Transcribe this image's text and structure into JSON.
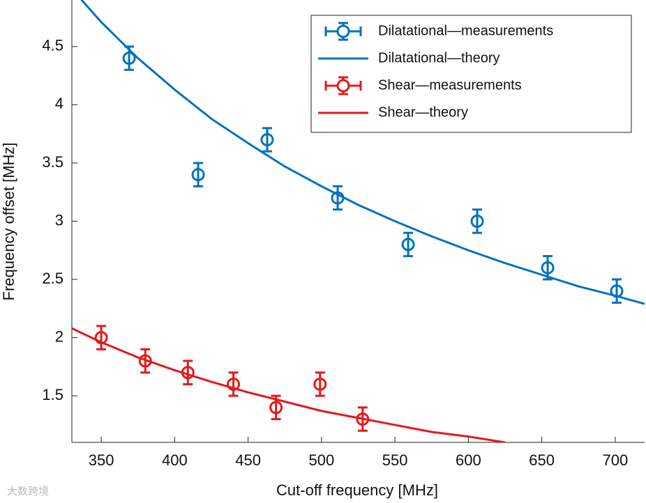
{
  "chart_data": {
    "type": "line",
    "x_label": "Cut-off frequency [MHz]",
    "y_label": "Frequency offset [MHz]",
    "xlim": [
      330,
      720
    ],
    "ylim": [
      1.1,
      4.9
    ],
    "xticks": [
      350,
      400,
      450,
      500,
      550,
      600,
      650,
      700
    ],
    "yticks": [
      1.5,
      2,
      2.5,
      3,
      3.5,
      4,
      4.5
    ],
    "legend": "upper right",
    "watermark": "大数跨境",
    "series": [
      {
        "name": "Dilatational—measurements",
        "color": "#0072bd",
        "mode": "markers",
        "x": [
          369,
          416,
          463,
          511,
          559,
          606,
          654,
          701
        ],
        "values": [
          4.4,
          3.4,
          3.7,
          3.2,
          2.8,
          3.0,
          2.6,
          2.4
        ],
        "errors": [
          0.1,
          0.1,
          0.1,
          0.1,
          0.1,
          0.1,
          0.1,
          0.1
        ]
      },
      {
        "name": "Dilatational—theory",
        "color": "#0072bd",
        "mode": "line",
        "x": [
          336,
          350,
          375,
          400,
          425,
          450,
          475,
          500,
          525,
          550,
          575,
          600,
          625,
          650,
          675,
          700,
          720
        ],
        "values": [
          4.91,
          4.71,
          4.4,
          4.13,
          3.88,
          3.67,
          3.47,
          3.3,
          3.14,
          3.0,
          2.87,
          2.75,
          2.64,
          2.54,
          2.44,
          2.36,
          2.29
        ]
      },
      {
        "name": "Shear—measurements",
        "color": "#e4191c",
        "mode": "markers",
        "x": [
          350,
          380,
          409,
          440,
          469,
          499,
          528
        ],
        "values": [
          2.0,
          1.8,
          1.7,
          1.6,
          1.4,
          1.6,
          1.3
        ],
        "errors": [
          0.1,
          0.1,
          0.1,
          0.1,
          0.1,
          0.1,
          0.1
        ]
      },
      {
        "name": "Shear—theory",
        "color": "#e4191c",
        "mode": "line",
        "x": [
          330,
          350,
          375,
          400,
          425,
          450,
          475,
          500,
          525,
          550,
          575,
          600,
          625
        ],
        "values": [
          2.08,
          1.96,
          1.83,
          1.72,
          1.62,
          1.53,
          1.45,
          1.37,
          1.31,
          1.25,
          1.19,
          1.15,
          1.1
        ]
      }
    ]
  }
}
